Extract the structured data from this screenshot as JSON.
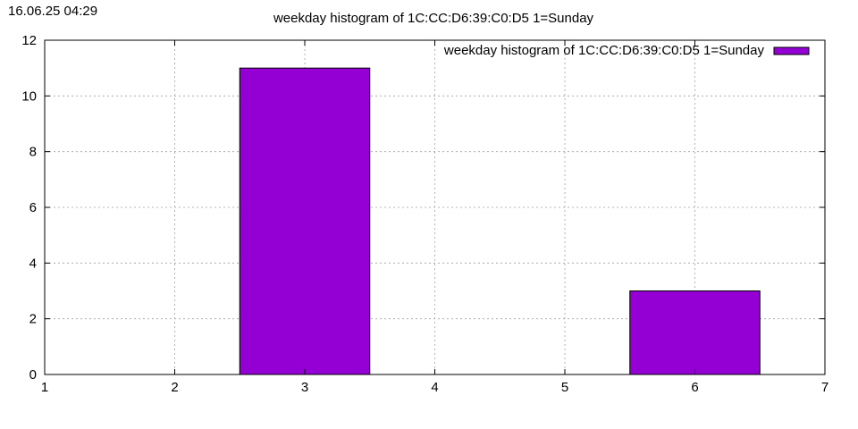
{
  "timestamp": "16.06.25 04:29",
  "chart_data": {
    "type": "bar",
    "title": "weekday histogram of 1C:CC:D6:39:C0:D5 1=Sunday",
    "xlabel": "",
    "ylabel": "",
    "x": [
      1,
      2,
      3,
      4,
      5,
      6,
      7
    ],
    "series": [
      {
        "name": "weekday histogram of 1C:CC:D6:39:C0:D5 1=Sunday",
        "color": "#9400d3",
        "values": [
          0,
          0,
          11,
          0,
          0,
          3,
          0
        ]
      }
    ],
    "xlim": [
      1,
      7
    ],
    "ylim": [
      0,
      12
    ],
    "xticks": [
      "1",
      "2",
      "3",
      "4",
      "5",
      "6",
      "7"
    ],
    "yticks": [
      "0",
      "2",
      "4",
      "6",
      "8",
      "10",
      "12"
    ],
    "bar_width": 1,
    "grid": true,
    "legend_position": "top-right"
  }
}
